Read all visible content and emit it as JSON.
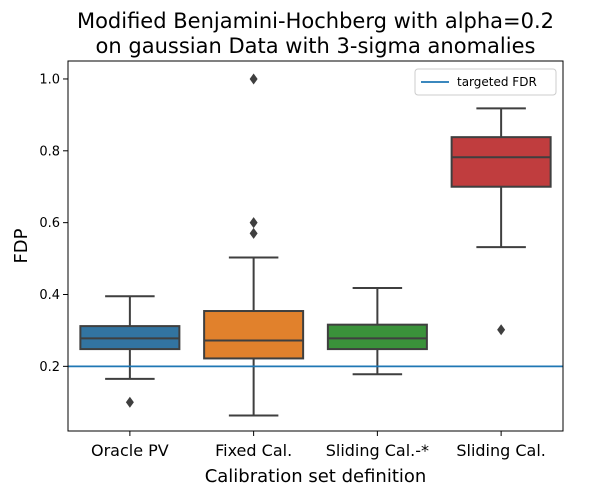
{
  "chart_data": {
    "type": "box",
    "title_lines": [
      "Modified Benjamini-Hochberg with alpha=0.2",
      "on gaussian Data with 3-sigma anomalies"
    ],
    "xlabel": "Calibration set definition",
    "ylabel": "FDP",
    "ylim": [
      0.02,
      1.05
    ],
    "yticks": [
      0.2,
      0.4,
      0.6,
      0.8,
      1.0
    ],
    "ytick_labels": [
      "0.2",
      "0.4",
      "0.6",
      "0.8",
      "1.0"
    ],
    "categories": [
      "Oracle PV",
      "Fixed Cal.",
      "Sliding Cal.-*",
      "Sliding Cal."
    ],
    "boxes": [
      {
        "whisker_low": 0.165,
        "q1": 0.248,
        "median": 0.278,
        "q3": 0.312,
        "whisker_high": 0.395,
        "outliers": [
          0.1
        ],
        "color": "#3274a1"
      },
      {
        "whisker_low": 0.063,
        "q1": 0.222,
        "median": 0.272,
        "q3": 0.354,
        "whisker_high": 0.503,
        "outliers": [
          0.57,
          0.6,
          1.0
        ],
        "color": "#e1812c"
      },
      {
        "whisker_low": 0.178,
        "q1": 0.248,
        "median": 0.278,
        "q3": 0.316,
        "whisker_high": 0.418,
        "outliers": [],
        "color": "#3a923a"
      },
      {
        "whisker_low": 0.532,
        "q1": 0.7,
        "median": 0.782,
        "q3": 0.838,
        "whisker_high": 0.918,
        "outliers": [
          0.302
        ],
        "color": "#c03d3e"
      }
    ],
    "reference_line": {
      "y": 0.2,
      "label": "targeted FDR",
      "color": "#1f77b4"
    },
    "legend_position": "top-right",
    "grid": false
  }
}
